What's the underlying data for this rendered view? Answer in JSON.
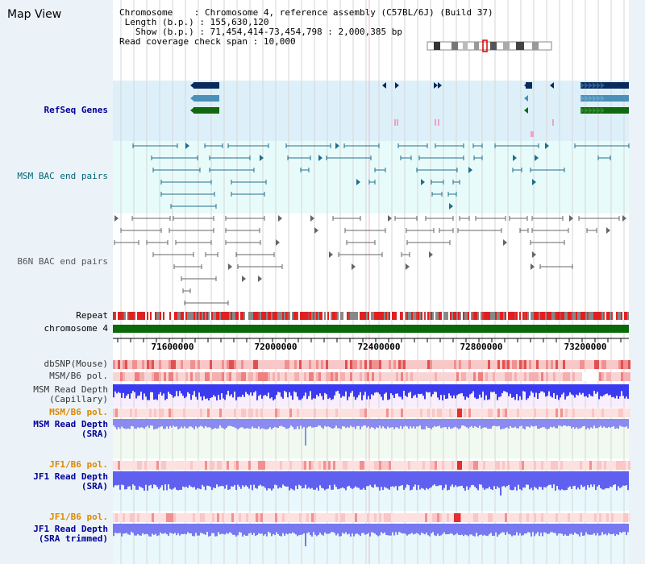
{
  "app": {
    "title": "Map View"
  },
  "info": {
    "chromosome_label": "Chromosome",
    "chromosome_value": "Chromosome 4, reference assembly (C57BL/6J) (Build 37)",
    "length_label": "Length (b.p.)",
    "length_value": "155,630,120",
    "show_label": "Show (b.p.)",
    "show_value": "71,454,414-73,454,798 : 2,000,385 bp",
    "coverage_label": "Read coverage check span",
    "coverage_value": "10,000"
  },
  "tracks": {
    "refseq": {
      "label": "RefSeq Genes",
      "color": "#000099"
    },
    "msm_bac": {
      "label": "MSM BAC end pairs",
      "color": "#006677"
    },
    "b6n_bac": {
      "label": "B6N BAC end pairs",
      "color": "#555555"
    },
    "repeat": {
      "label": "Repeat"
    },
    "chromosome": {
      "label": "chromosome 4"
    },
    "dbsnp": {
      "label": "dbSNP(Mouse)"
    },
    "msm_b6_pol_1": {
      "label": "MSM/B6 pol."
    },
    "msm_depth_cap": {
      "label": "MSM Read Depth",
      "sub": "(Capillary)"
    },
    "msm_b6_pol_2": {
      "label": "MSM/B6 pol.",
      "color": "#dd8800"
    },
    "msm_depth_sra": {
      "label": "MSM Read Depth",
      "sub": "(SRA)",
      "color": "#000099"
    },
    "jf1_b6_pol_1": {
      "label": "JF1/B6 pol.",
      "color": "#dd8800"
    },
    "jf1_depth_sra": {
      "label": "JF1 Read Depth",
      "sub": "(SRA)",
      "color": "#000099"
    },
    "jf1_b6_pol_2": {
      "label": "JF1/B6 pol.",
      "color": "#dd8800"
    },
    "jf1_depth_trim": {
      "label": "JF1 Read Depth",
      "sub": "(SRA trimmed)",
      "color": "#000099"
    }
  },
  "axis": {
    "ticks": [
      "71600000",
      "72000000",
      "72400000",
      "72800000",
      "73200000"
    ]
  }
}
